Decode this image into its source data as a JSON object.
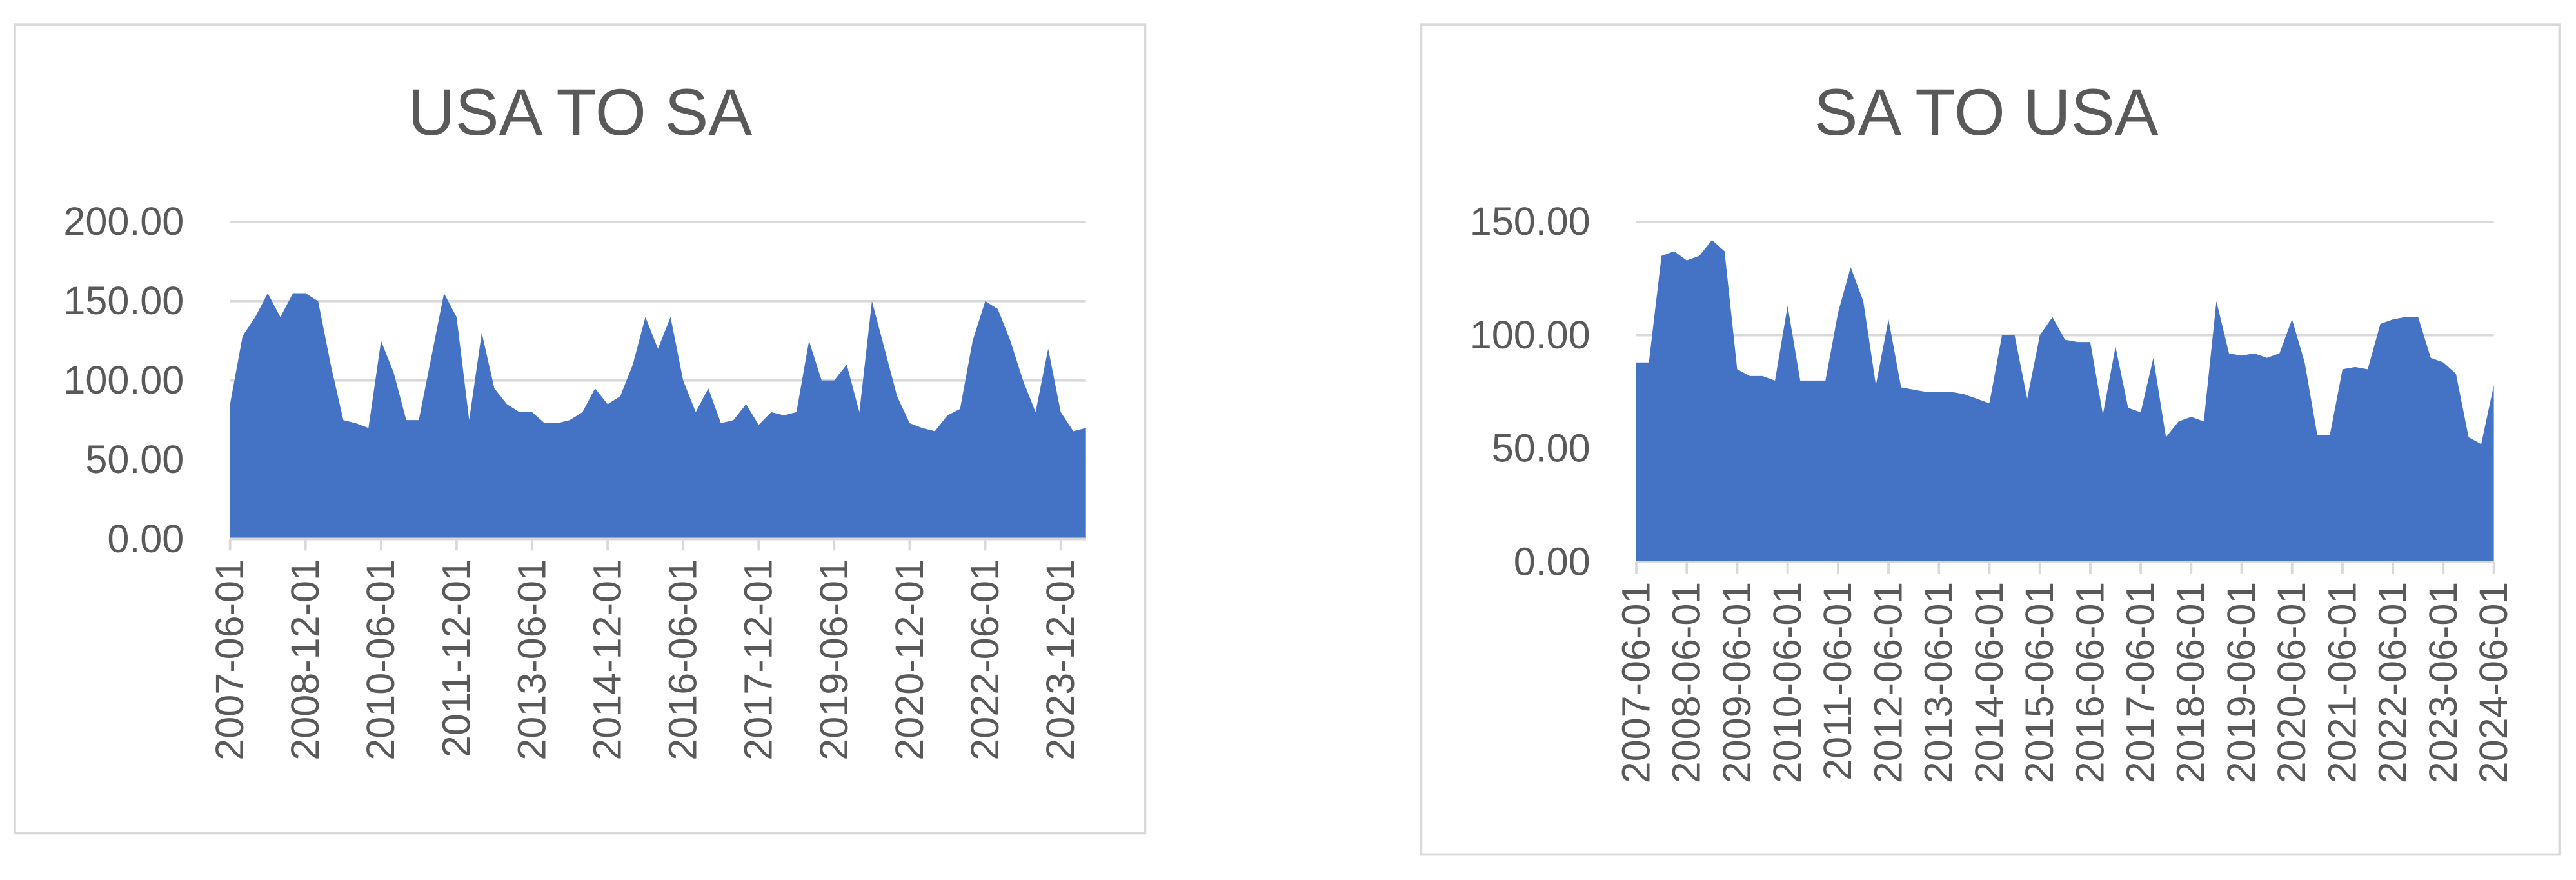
{
  "chart_data": [
    {
      "type": "area",
      "title": "USA TO SA",
      "color": "#4472c4",
      "grid": true,
      "ylim": [
        0,
        200
      ],
      "yticks": [
        {
          "value": 0,
          "label": "0.00"
        },
        {
          "value": 50,
          "label": "50.00"
        },
        {
          "value": 100,
          "label": "100.00"
        },
        {
          "value": 150,
          "label": "150.00"
        },
        {
          "value": 200,
          "label": "200.00"
        }
      ],
      "categories": [
        "2007-06-01",
        null,
        null,
        null,
        null,
        null,
        "2008-12-01",
        null,
        null,
        null,
        null,
        null,
        "2010-06-01",
        null,
        null,
        null,
        null,
        null,
        "2011-12-01",
        null,
        null,
        null,
        null,
        null,
        "2013-06-01",
        null,
        null,
        null,
        null,
        null,
        "2014-12-01",
        null,
        null,
        null,
        null,
        null,
        "2016-06-01",
        null,
        null,
        null,
        null,
        null,
        "2017-12-01",
        null,
        null,
        null,
        null,
        null,
        "2019-06-01",
        null,
        null,
        null,
        null,
        null,
        "2020-12-01",
        null,
        null,
        null,
        null,
        null,
        "2022-06-01",
        null,
        null,
        null,
        null,
        null,
        "2023-12-01",
        null,
        null
      ],
      "values": [
        85,
        128,
        140,
        155,
        140,
        155,
        155,
        150,
        110,
        75,
        73,
        70,
        125,
        105,
        75,
        75,
        115,
        155,
        140,
        75,
        130,
        95,
        85,
        80,
        80,
        73,
        73,
        75,
        80,
        95,
        85,
        90,
        110,
        140,
        120,
        140,
        100,
        80,
        95,
        73,
        75,
        85,
        72,
        80,
        78,
        80,
        125,
        100,
        100,
        110,
        80,
        150,
        120,
        90,
        73,
        70,
        68,
        78,
        82,
        125,
        150,
        145,
        125,
        100,
        80,
        120,
        80,
        68,
        70
      ]
    },
    {
      "type": "area",
      "title": "SA TO USA",
      "color": "#4472c4",
      "grid": true,
      "ylim": [
        0,
        150
      ],
      "yticks": [
        {
          "value": 0,
          "label": "0.00"
        },
        {
          "value": 50,
          "label": "50.00"
        },
        {
          "value": 100,
          "label": "100.00"
        },
        {
          "value": 150,
          "label": "150.00"
        }
      ],
      "categories": [
        "2007-06-01",
        null,
        null,
        null,
        "2008-06-01",
        null,
        null,
        null,
        "2009-06-01",
        null,
        null,
        null,
        "2010-06-01",
        null,
        null,
        null,
        "2011-06-01",
        null,
        null,
        null,
        "2012-06-01",
        null,
        null,
        null,
        "2013-06-01",
        null,
        null,
        null,
        "2014-06-01",
        null,
        null,
        null,
        "2015-06-01",
        null,
        null,
        null,
        "2016-06-01",
        null,
        null,
        null,
        "2017-06-01",
        null,
        null,
        null,
        "2018-06-01",
        null,
        null,
        null,
        "2019-06-01",
        null,
        null,
        null,
        "2020-06-01",
        null,
        null,
        null,
        "2021-06-01",
        null,
        null,
        null,
        "2022-06-01",
        null,
        null,
        null,
        "2023-06-01",
        null,
        null,
        null,
        "2024-06-01"
      ],
      "values": [
        88,
        88,
        135,
        137,
        133,
        135,
        142,
        137,
        85,
        82,
        82,
        80,
        113,
        80,
        80,
        80,
        110,
        130,
        115,
        78,
        107,
        77,
        76,
        75,
        75,
        75,
        74,
        72,
        70,
        100,
        100,
        72,
        100,
        108,
        98,
        97,
        97,
        65,
        95,
        68,
        66,
        90,
        55,
        62,
        64,
        62,
        115,
        92,
        91,
        92,
        90,
        92,
        107,
        88,
        56,
        56,
        85,
        86,
        85,
        105,
        107,
        108,
        108,
        90,
        88,
        83,
        55,
        52,
        78
      ]
    }
  ]
}
